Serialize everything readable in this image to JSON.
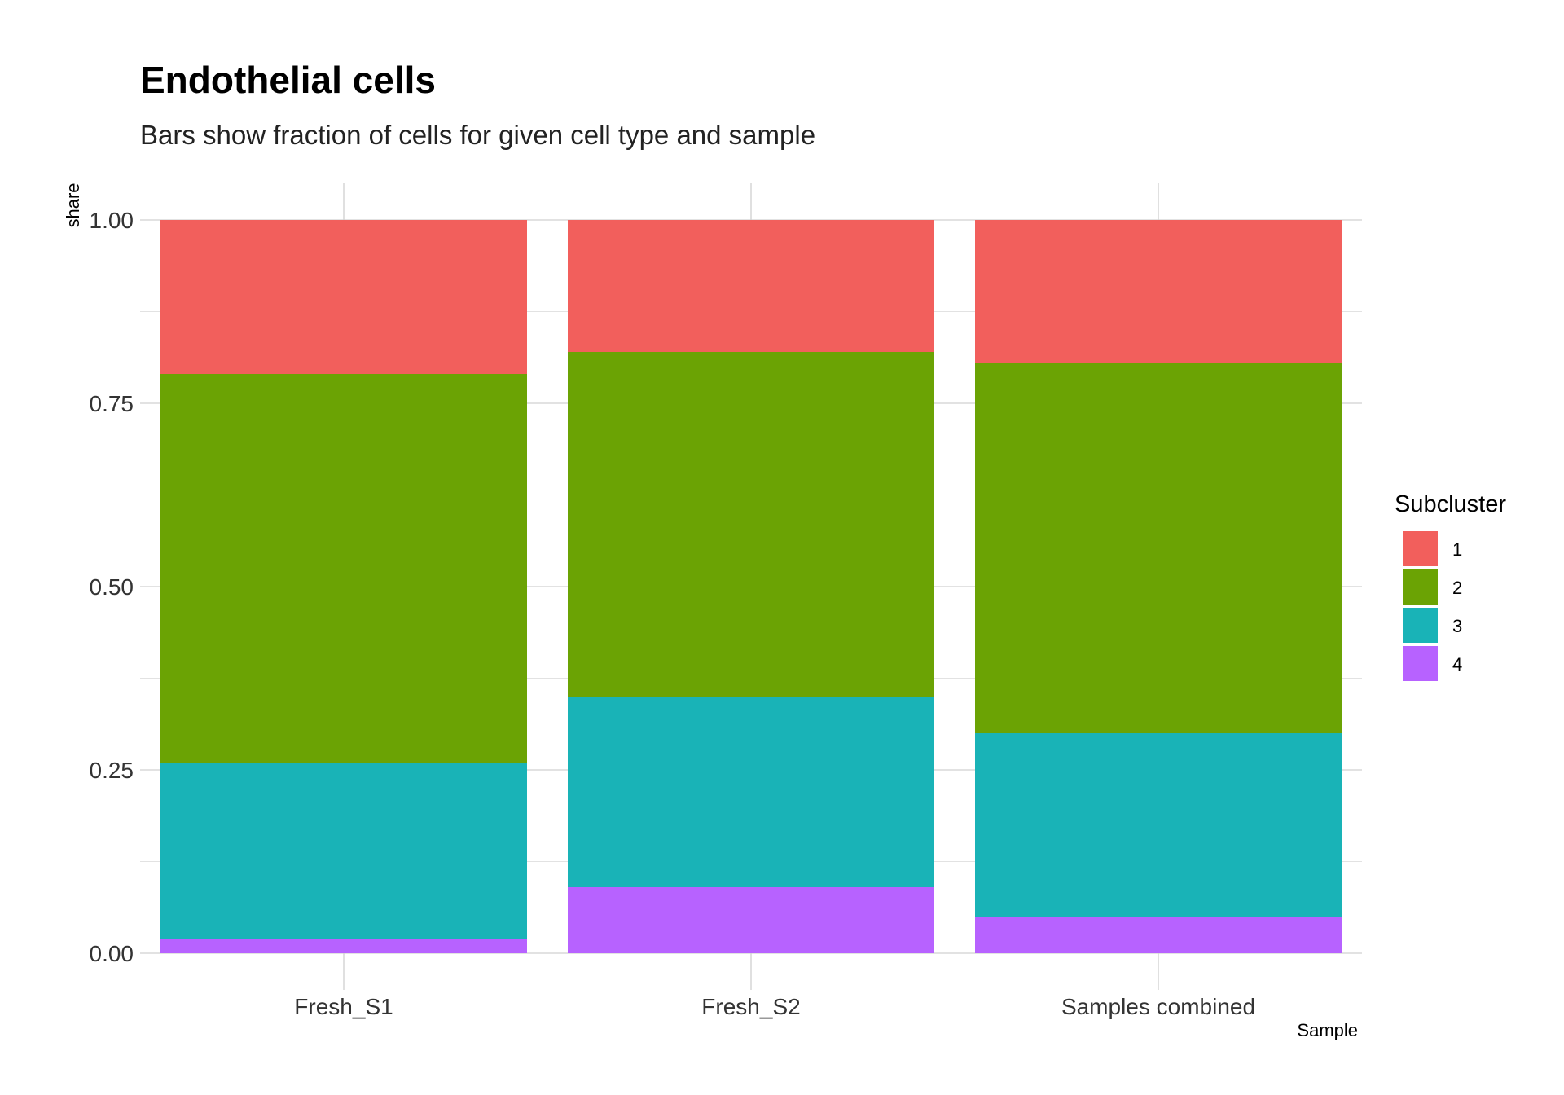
{
  "chart_data": {
    "type": "bar",
    "stacked": true,
    "title": "Endothelial cells",
    "subtitle": "Bars show fraction of cells for given cell type and sample",
    "xlabel": "Sample",
    "ylabel": "share",
    "ylim": [
      0,
      1
    ],
    "yticks": [
      "0.00",
      "0.25",
      "0.50",
      "0.75",
      "1.00"
    ],
    "grid": true,
    "legend_title": "Subcluster",
    "legend_position": "right",
    "categories": [
      "Fresh_S1",
      "Fresh_S2",
      "Samples combined"
    ],
    "series": [
      {
        "name": "1",
        "color": "#F25F5C",
        "values": [
          0.21,
          0.18,
          0.195
        ]
      },
      {
        "name": "2",
        "color": "#6BA304",
        "values": [
          0.53,
          0.47,
          0.505
        ]
      },
      {
        "name": "3",
        "color": "#19B3B7",
        "values": [
          0.24,
          0.26,
          0.25
        ]
      },
      {
        "name": "4",
        "color": "#B762FF",
        "values": [
          0.02,
          0.09,
          0.05
        ]
      }
    ]
  }
}
